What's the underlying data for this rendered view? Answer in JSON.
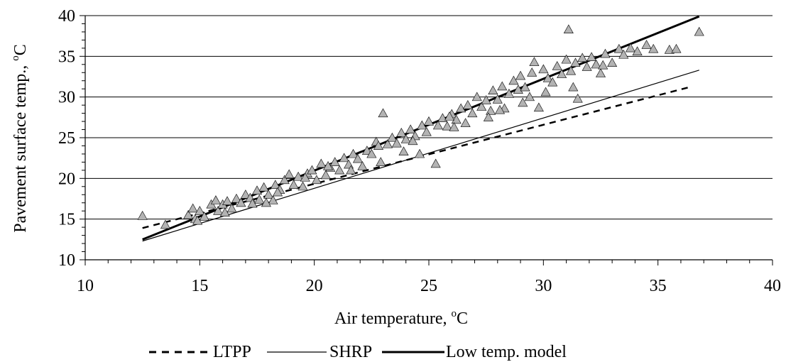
{
  "chart_data": {
    "type": "scatter",
    "title": "",
    "xlabel": "Air temperature, ",
    "xlabel_sup": "o",
    "xlabel_unit": "C",
    "ylabel": "Pavement surface temp., ",
    "ylabel_sup": "o",
    "ylabel_unit": "C",
    "xlim": [
      10,
      40
    ],
    "ylim": [
      10,
      40
    ],
    "xticks": [
      10,
      15,
      20,
      25,
      30,
      35,
      40
    ],
    "yticks": [
      10,
      15,
      20,
      25,
      30,
      35,
      40
    ],
    "grid": "horizontal",
    "legend_position": "bottom",
    "series": [
      {
        "marker": "triangle",
        "color": "#b3b3b3",
        "points": [
          [
            12.5,
            15.4
          ],
          [
            13.5,
            14.3
          ],
          [
            14.5,
            15.5
          ],
          [
            14.7,
            16.3
          ],
          [
            14.8,
            15.0
          ],
          [
            15.0,
            16.0
          ],
          [
            15.2,
            15.3
          ],
          [
            15.5,
            16.8
          ],
          [
            15.7,
            17.3
          ],
          [
            15.8,
            16.0
          ],
          [
            16.0,
            16.8
          ],
          [
            16.2,
            17.2
          ],
          [
            16.4,
            16.3
          ],
          [
            16.6,
            17.5
          ],
          [
            16.8,
            17.0
          ],
          [
            17.0,
            18.0
          ],
          [
            17.2,
            17.6
          ],
          [
            17.3,
            16.9
          ],
          [
            17.5,
            18.5
          ],
          [
            17.6,
            17.4
          ],
          [
            17.8,
            18.9
          ],
          [
            18.0,
            18.0
          ],
          [
            18.2,
            17.3
          ],
          [
            18.3,
            19.2
          ],
          [
            18.5,
            18.6
          ],
          [
            18.7,
            19.8
          ],
          [
            18.9,
            20.5
          ],
          [
            19.1,
            19.2
          ],
          [
            19.3,
            20.2
          ],
          [
            19.5,
            19.0
          ],
          [
            19.7,
            20.6
          ],
          [
            19.9,
            21.0
          ],
          [
            20.1,
            19.8
          ],
          [
            20.3,
            21.8
          ],
          [
            20.5,
            20.4
          ],
          [
            20.7,
            21.3
          ],
          [
            20.9,
            22.0
          ],
          [
            21.1,
            21.0
          ],
          [
            21.3,
            22.5
          ],
          [
            21.5,
            21.7
          ],
          [
            21.7,
            23.0
          ],
          [
            21.9,
            22.4
          ],
          [
            22.1,
            21.5
          ],
          [
            22.3,
            23.4
          ],
          [
            22.5,
            23.0
          ],
          [
            22.7,
            24.5
          ],
          [
            22.9,
            22.0
          ],
          [
            23.0,
            28.0
          ],
          [
            23.2,
            24.2
          ],
          [
            23.4,
            25.0
          ],
          [
            23.6,
            24.3
          ],
          [
            23.8,
            25.6
          ],
          [
            24.0,
            24.8
          ],
          [
            24.2,
            26.0
          ],
          [
            24.4,
            25.2
          ],
          [
            24.6,
            23.0
          ],
          [
            24.7,
            26.5
          ],
          [
            24.9,
            25.7
          ],
          [
            25.0,
            27.0
          ],
          [
            25.3,
            21.8
          ],
          [
            25.4,
            26.5
          ],
          [
            25.6,
            27.4
          ],
          [
            25.8,
            26.4
          ],
          [
            26.0,
            27.9
          ],
          [
            26.2,
            27.2
          ],
          [
            26.4,
            28.6
          ],
          [
            26.6,
            26.8
          ],
          [
            26.7,
            29.0
          ],
          [
            26.9,
            28.0
          ],
          [
            27.1,
            30.0
          ],
          [
            27.3,
            28.8
          ],
          [
            27.5,
            29.6
          ],
          [
            27.7,
            28.3
          ],
          [
            27.8,
            30.8
          ],
          [
            28.0,
            29.7
          ],
          [
            28.2,
            31.3
          ],
          [
            28.3,
            28.6
          ],
          [
            28.5,
            30.4
          ],
          [
            28.7,
            32.0
          ],
          [
            28.9,
            30.9
          ],
          [
            29.0,
            32.6
          ],
          [
            29.2,
            31.2
          ],
          [
            29.4,
            30.0
          ],
          [
            29.5,
            33.0
          ],
          [
            29.6,
            34.3
          ],
          [
            29.8,
            28.7
          ],
          [
            30.0,
            33.4
          ],
          [
            30.2,
            32.3
          ],
          [
            30.4,
            31.8
          ],
          [
            30.6,
            33.8
          ],
          [
            30.8,
            32.8
          ],
          [
            31.0,
            34.6
          ],
          [
            31.1,
            38.3
          ],
          [
            31.2,
            33.2
          ],
          [
            31.4,
            34.2
          ],
          [
            31.5,
            29.8
          ],
          [
            31.7,
            34.8
          ],
          [
            31.9,
            33.7
          ],
          [
            32.1,
            34.9
          ],
          [
            32.3,
            34.0
          ],
          [
            32.5,
            32.9
          ],
          [
            32.7,
            35.3
          ],
          [
            33.0,
            34.2
          ],
          [
            33.3,
            35.9
          ],
          [
            33.5,
            35.2
          ],
          [
            33.8,
            36.0
          ],
          [
            34.1,
            35.6
          ],
          [
            34.5,
            36.4
          ],
          [
            34.8,
            35.9
          ],
          [
            35.5,
            35.8
          ],
          [
            35.8,
            35.9
          ],
          [
            36.8,
            38.0
          ],
          [
            14.9,
            14.8
          ],
          [
            16.1,
            15.8
          ],
          [
            17.9,
            17.0
          ],
          [
            19.6,
            20.1
          ],
          [
            21.6,
            21.0
          ],
          [
            23.9,
            23.3
          ],
          [
            26.1,
            26.3
          ],
          [
            28.1,
            28.4
          ],
          [
            30.1,
            30.6
          ],
          [
            25.9,
            27.6
          ],
          [
            22.8,
            24.0
          ],
          [
            20.6,
            21.5
          ],
          [
            18.4,
            18.3
          ],
          [
            27.6,
            27.5
          ],
          [
            29.1,
            29.3
          ],
          [
            31.3,
            31.2
          ],
          [
            32.6,
            33.9
          ],
          [
            24.3,
            24.6
          ]
        ]
      },
      {
        "name": "LTPP",
        "style": "dashed",
        "color": "#000000",
        "width": 2.5,
        "x": [
          12.5,
          36.5
        ],
        "y": [
          13.9,
          31.3
        ]
      },
      {
        "name": "SHRP",
        "style": "solid",
        "color": "#000000",
        "width": 1.2,
        "x": [
          12.5,
          36.8
        ],
        "y": [
          12.3,
          33.3
        ]
      },
      {
        "name": "Low temp. model",
        "style": "solid",
        "color": "#000000",
        "width": 3,
        "x": [
          12.5,
          36.8
        ],
        "y": [
          12.5,
          39.9
        ]
      }
    ]
  }
}
